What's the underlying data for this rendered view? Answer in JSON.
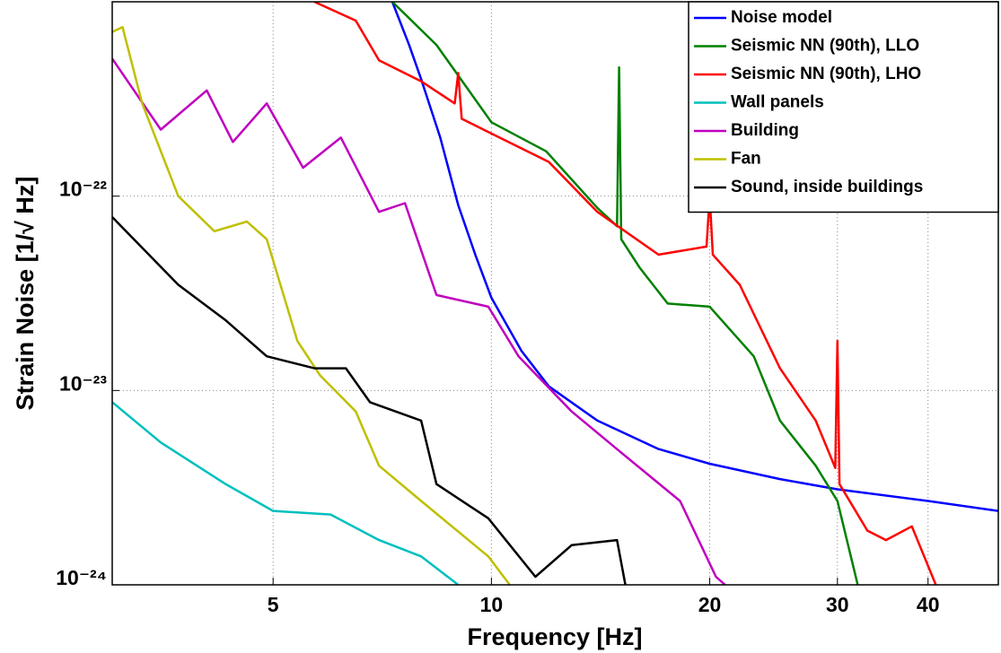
{
  "chart_data": {
    "type": "line",
    "x_label": "Frequency [Hz]",
    "y_label": "Strain Noise [1/√ Hz]",
    "xscale": "log",
    "yscale": "log",
    "xlim": [
      3,
      50
    ],
    "ylim": [
      1e-24,
      1e-21
    ],
    "xticks": [
      5,
      10,
      20,
      30,
      40
    ],
    "yticks": [
      {
        "value": 1e-24,
        "label": "10⁻²⁴"
      },
      {
        "value": 1e-23,
        "label": "10⁻²³"
      },
      {
        "value": 1e-22,
        "label": "10⁻²²"
      }
    ],
    "grid": true,
    "legend": "upper right",
    "series": [
      {
        "name": "Noise model",
        "color": "#0000ff",
        "x": [
          7.3,
          7.7,
          8,
          8.5,
          9,
          9.5,
          10,
          11,
          12,
          14,
          17,
          20,
          25,
          30,
          40,
          50
        ],
        "values": [
          1e-21,
          6e-22,
          4e-22,
          2e-22,
          9e-23,
          5e-23,
          3e-23,
          1.6e-23,
          1.05e-23,
          7e-24,
          5e-24,
          4.2e-24,
          3.5e-24,
          3.1e-24,
          2.7e-24,
          2.4e-24
        ]
      },
      {
        "name": "Seismic NN (90th), LLO",
        "color": "#008000",
        "x": [
          7.3,
          8.4,
          10,
          11.9,
          14,
          14.9,
          15,
          15.1,
          16,
          17.5,
          20,
          23,
          25,
          28,
          30,
          32
        ],
        "values": [
          1e-21,
          6e-22,
          2.4e-22,
          1.7e-22,
          8.7e-23,
          7e-23,
          4.6e-22,
          6e-23,
          4.3e-23,
          2.8e-23,
          2.7e-23,
          1.5e-23,
          7e-24,
          4.1e-24,
          2.7e-24,
          1e-24
        ]
      },
      {
        "name": "Seismic NN (90th), LHO",
        "color": "#ff0000",
        "x": [
          5.7,
          6.5,
          7,
          8,
          8.9,
          9,
          9.1,
          10,
          12,
          14,
          17,
          19.8,
          20,
          20.2,
          22,
          25,
          28,
          29.8,
          30,
          30.2,
          33,
          35,
          38,
          41
        ],
        "values": [
          1e-21,
          8e-22,
          5e-22,
          3.9e-22,
          3e-22,
          4.3e-22,
          2.5e-22,
          2.1e-22,
          1.5e-22,
          8.3e-23,
          5e-23,
          5.5e-23,
          1e-22,
          5e-23,
          3.5e-23,
          1.3e-23,
          7e-24,
          4e-24,
          1.8e-23,
          3.3e-24,
          1.9e-24,
          1.7e-24,
          2e-24,
          1e-24
        ]
      },
      {
        "name": "Wall panels",
        "color": "#00bfbf",
        "x": [
          3,
          3.5,
          4.3,
          5,
          6,
          7,
          8,
          9
        ],
        "values": [
          8.7e-24,
          5.4e-24,
          3.3e-24,
          2.4e-24,
          2.3e-24,
          1.7e-24,
          1.4e-24,
          1e-24
        ]
      },
      {
        "name": "Building",
        "color": "#bf00bf",
        "x": [
          3,
          3.5,
          4.05,
          4.4,
          4.9,
          5.5,
          6.2,
          7,
          7.6,
          8.4,
          9.9,
          10.9,
          12.9,
          15.3,
          18.2,
          20.4,
          21
        ],
        "values": [
          5.1e-22,
          2.2e-22,
          3.5e-22,
          1.9e-22,
          3e-22,
          1.4e-22,
          2e-22,
          8.3e-23,
          9.2e-23,
          3.1e-23,
          2.7e-23,
          1.5e-23,
          7.8e-24,
          4.6e-24,
          2.7e-24,
          1.1e-24,
          1e-24
        ]
      },
      {
        "name": "Fan",
        "color": "#bfbf00",
        "x": [
          3,
          3.1,
          3.3,
          3.7,
          4.15,
          4.6,
          4.9,
          5.4,
          5.8,
          6.5,
          7,
          8,
          9.9,
          10.6
        ],
        "values": [
          7e-22,
          7.4e-22,
          3e-22,
          1e-22,
          6.6e-23,
          7.4e-23,
          6e-23,
          1.8e-23,
          1.2e-23,
          7.8e-24,
          4.1e-24,
          2.7e-24,
          1.4e-24,
          1e-24
        ]
      },
      {
        "name": "Sound, inside buildings",
        "color": "#000000",
        "x": [
          3,
          3.7,
          4.3,
          4.9,
          5.7,
          6.3,
          6.8,
          8,
          8.4,
          9.9,
          11.5,
          12.9,
          14.9,
          15.3
        ],
        "values": [
          7.8e-23,
          3.5e-23,
          2.3e-23,
          1.5e-23,
          1.3e-23,
          1.3e-23,
          8.7e-24,
          7e-24,
          3.3e-24,
          2.2e-24,
          1.1e-24,
          1.6e-24,
          1.7e-24,
          1e-24
        ]
      }
    ]
  }
}
